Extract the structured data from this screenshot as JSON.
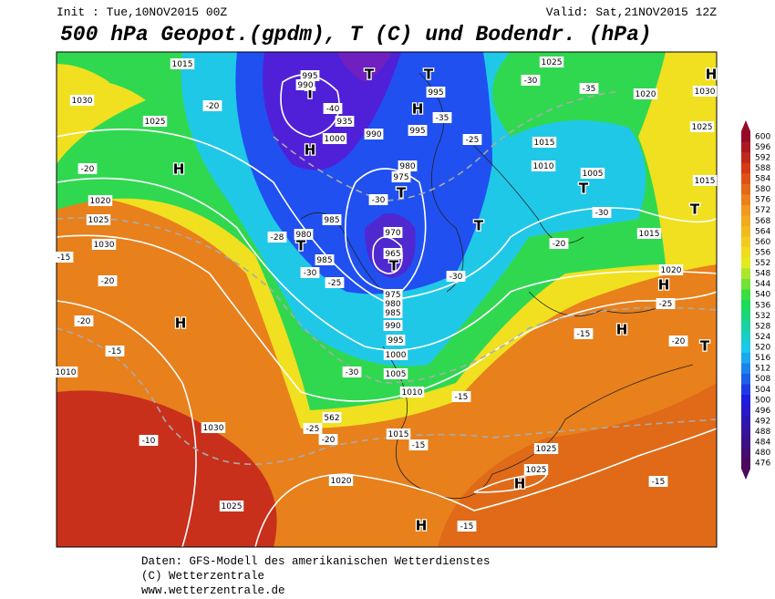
{
  "header": {
    "init": "Init : Tue,10NOV2015 00Z",
    "valid": "Valid: Sat,21NOV2015 12Z",
    "title": "500 hPa Geopot.(gpdm), T (C) und Bodendr. (hPa)"
  },
  "colorbar": {
    "levels": [
      600,
      596,
      592,
      588,
      584,
      580,
      576,
      572,
      568,
      564,
      560,
      556,
      552,
      548,
      544,
      540,
      536,
      532,
      528,
      524,
      520,
      516,
      512,
      508,
      504,
      500,
      496,
      492,
      488,
      484,
      480,
      476
    ]
  },
  "map_labels": [
    "T",
    "T",
    "T",
    "T",
    "T",
    "T",
    "T",
    "T",
    "T",
    "T",
    "H",
    "H",
    "H",
    "H",
    "H",
    "H",
    "H",
    "H",
    "H",
    "1015",
    "1030",
    "1025",
    "995",
    "990",
    "995",
    "-40",
    "935",
    "995",
    "1000",
    "990",
    "980",
    "975",
    "985",
    "980",
    "970",
    "965",
    "985",
    "975",
    "980",
    "985",
    "990",
    "995",
    "1000",
    "1005",
    "1010",
    "1015",
    "1020",
    "1025",
    "1030",
    "1025",
    "1025",
    "1025",
    "1020",
    "1015",
    "1010",
    "1005",
    "1015",
    "1020",
    "1020",
    "1025",
    "1030",
    "1010",
    "1025",
    "1015",
    "1030",
    "-30",
    "-35",
    "-35",
    "-25",
    "-30",
    "-30",
    "-30",
    "-25",
    "-30",
    "-20",
    "-20",
    "-15",
    "-20",
    "-20",
    "-15",
    "-25",
    "-20",
    "-15",
    "-30",
    "-15",
    "-25",
    "-20",
    "-15",
    "-10",
    "-15",
    "-15",
    "-28",
    "-20",
    "562"
  ],
  "footer": [
    "Daten: GFS-Modell des amerikanischen Wetterdienstes",
    "(C) Wetterzentrale",
    "www.wetterzentrale.de"
  ]
}
